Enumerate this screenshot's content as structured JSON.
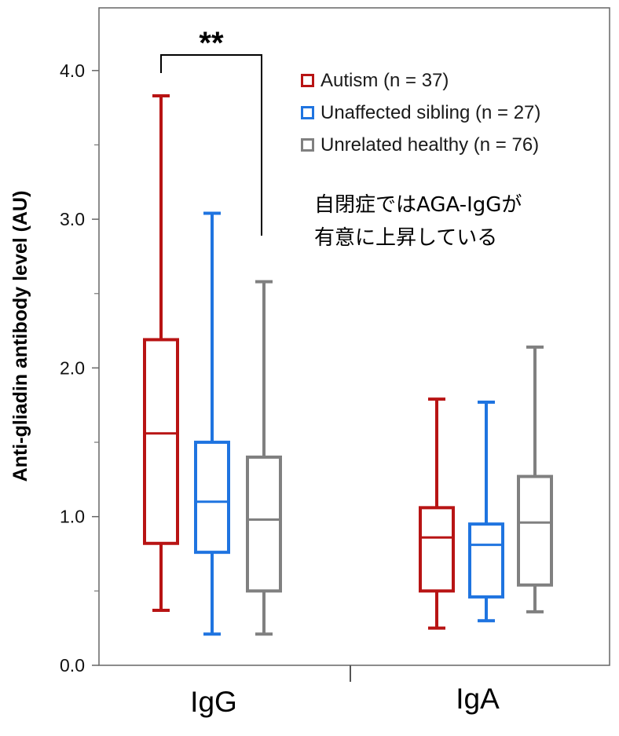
{
  "chart_data": {
    "type": "boxplot",
    "ylabel": "Anti-gliadin antibody level (AU)",
    "ylim": [
      0,
      4.4
    ],
    "yticks": [
      "0.0",
      "1.0",
      "2.0",
      "3.0",
      "4.0"
    ],
    "ytick_values": [
      0,
      1,
      2,
      3,
      4
    ],
    "yminor_values": [
      0.5,
      1.5,
      2.5,
      3.5
    ],
    "categories": [
      "IgG",
      "IgA"
    ],
    "series": [
      {
        "name": "Autism (n = 37)",
        "color": "#b81414",
        "boxes": [
          {
            "min": 0.37,
            "q1": 0.82,
            "median": 1.56,
            "q3": 2.19,
            "max": 3.83
          },
          {
            "min": 0.25,
            "q1": 0.5,
            "median": 0.86,
            "q3": 1.06,
            "max": 1.79
          }
        ]
      },
      {
        "name": "Unaffected sibling (n = 27)",
        "color": "#1f74e0",
        "boxes": [
          {
            "min": 0.21,
            "q1": 0.76,
            "median": 1.1,
            "q3": 1.5,
            "max": 3.04
          },
          {
            "min": 0.3,
            "q1": 0.46,
            "median": 0.81,
            "q3": 0.95,
            "max": 1.77
          }
        ]
      },
      {
        "name": "Unrelated healthy (n = 76)",
        "color": "#808080",
        "boxes": [
          {
            "min": 0.21,
            "q1": 0.5,
            "median": 0.98,
            "q3": 1.4,
            "max": 2.58
          },
          {
            "min": 0.36,
            "q1": 0.54,
            "median": 0.96,
            "q3": 1.27,
            "max": 2.14
          }
        ]
      }
    ],
    "significance": {
      "label": "**",
      "category": "IgG",
      "between": [
        "Autism (n = 37)",
        "Unrelated healthy (n = 76)"
      ]
    },
    "annotation": {
      "line1": "自閉症ではAGA-IgGが",
      "line2": "有意に上昇している"
    }
  }
}
